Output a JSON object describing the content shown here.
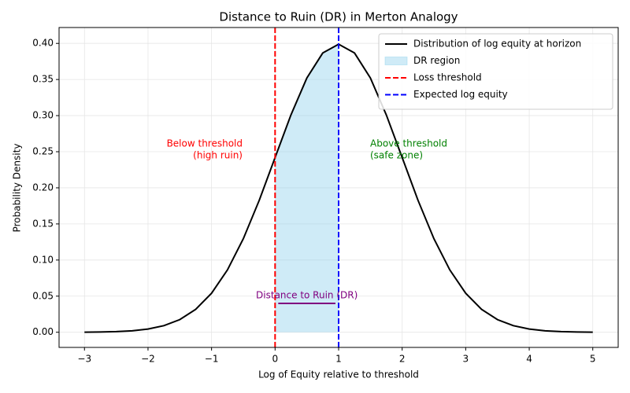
{
  "chart_data": {
    "type": "line",
    "title": "Distance to Ruin (DR) in Merton Analogy",
    "x_label": "Log of Equity relative to threshold",
    "y_label": "Probability Density",
    "x": [
      -3,
      -2.75,
      -2.5,
      -2.25,
      -2,
      -1.75,
      -1.5,
      -1.25,
      -1,
      -0.75,
      -0.5,
      -0.25,
      0,
      0.25,
      0.5,
      0.75,
      1,
      1.25,
      1.5,
      1.75,
      2,
      2.25,
      2.5,
      2.75,
      3,
      3.25,
      3.5,
      3.75,
      4,
      4.25,
      4.5,
      4.75,
      5
    ],
    "series": [
      {
        "name": "Distribution of log equity at horizon",
        "color": "#000000",
        "values": [
          0.0001,
          0.0004,
          0.0009,
          0.002,
          0.0044,
          0.0091,
          0.0175,
          0.0317,
          0.054,
          0.0863,
          0.1295,
          0.1826,
          0.242,
          0.3011,
          0.3521,
          0.3867,
          0.3989,
          0.3867,
          0.3521,
          0.3011,
          0.242,
          0.1826,
          0.1295,
          0.0863,
          0.054,
          0.0317,
          0.0175,
          0.0091,
          0.0044,
          0.002,
          0.0009,
          0.0004,
          0.0001
        ]
      }
    ],
    "fill": {
      "name": "DR region",
      "color": "#87ceeb",
      "from": 0,
      "to": 1
    },
    "vlines": [
      {
        "name": "Loss threshold",
        "x": 0,
        "color": "#ff0000"
      },
      {
        "name": "Expected log equity",
        "x": 1,
        "color": "#0000ff"
      }
    ],
    "dr_segment": {
      "label": "Distance to Ruin (DR)",
      "x": [
        0.05,
        0.95
      ],
      "y": 0.04,
      "color": "#800080"
    },
    "annotations": [
      {
        "lines": [
          "Below threshold",
          "(high ruin)"
        ],
        "color": "#ff0000"
      },
      {
        "lines": [
          "Above threshold",
          "(safe zone)"
        ],
        "color": "#008000"
      }
    ],
    "xlim": [
      -3.4,
      5.4
    ],
    "ylim": [
      -0.021,
      0.422
    ],
    "xticks": [
      {
        "value": -3,
        "label": "−3"
      },
      {
        "value": -2,
        "label": "−2"
      },
      {
        "value": -1,
        "label": "−1"
      },
      0,
      1,
      2,
      3,
      4,
      5
    ],
    "yticks": [
      {
        "value": 0,
        "label": "0.00"
      },
      {
        "value": 0.05,
        "label": "0.05"
      },
      {
        "value": 0.1,
        "label": "0.10"
      },
      {
        "value": 0.15,
        "label": "0.15"
      },
      {
        "value": 0.2,
        "label": "0.20"
      },
      {
        "value": 0.25,
        "label": "0.25"
      },
      {
        "value": 0.3,
        "label": "0.30"
      },
      {
        "value": 0.35,
        "label": "0.35"
      },
      {
        "value": 0.4,
        "label": "0.40"
      }
    ],
    "grid": true,
    "legend": "upper right"
  }
}
